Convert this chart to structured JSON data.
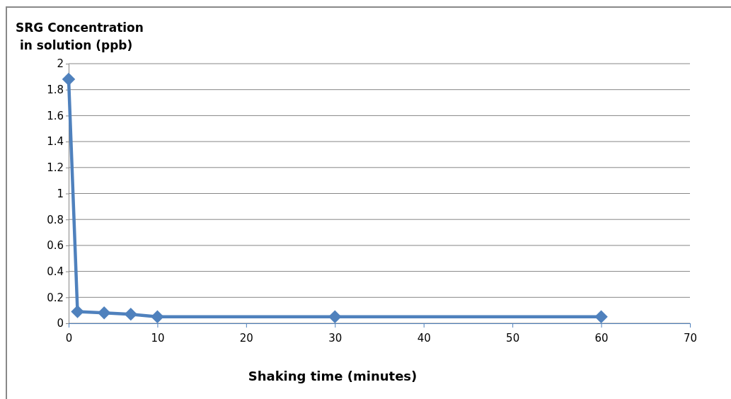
{
  "chart_data": {
    "type": "line",
    "ylabel": "SRG Concentration\nin solution (ppb)",
    "xlabel": "Shaking time (minutes)",
    "x": [
      0,
      1,
      4,
      7,
      10,
      30,
      60
    ],
    "series": [
      {
        "color": "#4f81bd",
        "values": [
          1.88,
          0.09,
          0.08,
          0.07,
          0.05,
          0.05,
          0.05
        ]
      }
    ],
    "xlim": [
      0,
      70
    ],
    "xticks": [
      0,
      10,
      20,
      30,
      40,
      50,
      60,
      70
    ],
    "ylim": [
      0,
      2
    ],
    "yticks": [
      0,
      0.2,
      0.4,
      0.6,
      0.8,
      1,
      1.2,
      1.4,
      1.6,
      1.8,
      2
    ],
    "grid": "y",
    "marker": "diamond",
    "line_style": "solid"
  }
}
